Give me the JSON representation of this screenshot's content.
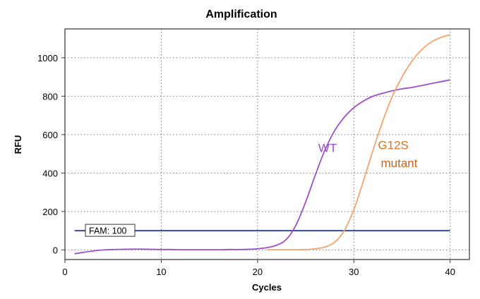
{
  "chart_data": {
    "type": "line",
    "title": "Amplification",
    "xlabel": "Cycles",
    "ylabel": "RFU",
    "xlim": [
      0,
      42
    ],
    "ylim": [
      -50,
      1150
    ],
    "xticks": [
      0,
      10,
      20,
      30,
      40
    ],
    "yticks": [
      0,
      200,
      400,
      600,
      800,
      1000
    ],
    "grid": true,
    "threshold": {
      "label": "FAM: 100",
      "value": 100,
      "color": "#2f4f8f"
    },
    "series": [
      {
        "name": "WT",
        "color": "#9b4fc8",
        "x": [
          1,
          2,
          3,
          4,
          5,
          6,
          7,
          8,
          9,
          10,
          11,
          12,
          13,
          14,
          15,
          16,
          17,
          18,
          19,
          20,
          21,
          22,
          23,
          24,
          25,
          26,
          27,
          28,
          29,
          30,
          31,
          32,
          33,
          34,
          35,
          36,
          37,
          38,
          39,
          40
        ],
        "y": [
          -20,
          -12,
          -5,
          0,
          2,
          3,
          4,
          4,
          3,
          2,
          2,
          1,
          1,
          1,
          1,
          1,
          2,
          2,
          3,
          6,
          12,
          25,
          55,
          130,
          250,
          390,
          520,
          620,
          690,
          740,
          775,
          800,
          815,
          828,
          838,
          845,
          855,
          865,
          875,
          885
        ]
      },
      {
        "name": "G12S mutant",
        "color": "#f4a46e",
        "x": [
          21,
          22,
          23,
          24,
          25,
          26,
          27,
          28,
          29,
          30,
          31,
          32,
          33,
          34,
          35,
          36,
          37,
          38,
          39,
          40
        ],
        "y": [
          1,
          1,
          1,
          1,
          2,
          6,
          15,
          40,
          100,
          210,
          360,
          520,
          670,
          800,
          900,
          980,
          1040,
          1080,
          1105,
          1120
        ]
      }
    ],
    "annotations": [
      {
        "text": "WT",
        "x": 26.3,
        "y": 510,
        "color": "#9b4fc8"
      },
      {
        "text": "G12S",
        "x": 32.5,
        "y": 525,
        "color": "#d8731e"
      },
      {
        "text": "mutant",
        "x": 32.8,
        "y": 430,
        "color": "#c9621a"
      }
    ]
  }
}
